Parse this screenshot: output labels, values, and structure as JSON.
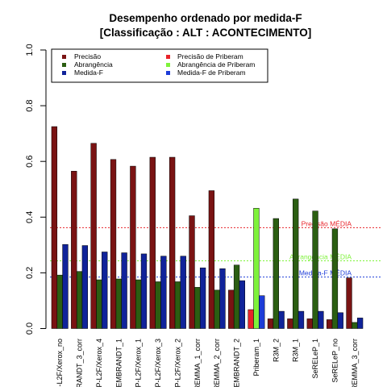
{
  "chart_data": {
    "type": "bar",
    "title": "Desempenho ordenado por medida-F",
    "subtitle": "[Classificação : ALT : ACONTECIMENTO]",
    "xlabel": "",
    "ylabel": "",
    "ylim": [
      0,
      1
    ],
    "yticks": [
      "0.0",
      "0.2",
      "0.4",
      "0.6",
      "0.8",
      "1.0"
    ],
    "grid": false,
    "legend_position": "top",
    "categories": [
      "P-L2F/Xerox_no",
      "EMBRANDT_3_corr",
      "P-L2F/Xerox_4",
      "EMBRANDT_1",
      "P-L2F/Xerox_1",
      "P-L2F/Xerox_3",
      "P-L2F/Xerox_2",
      "REMMA_1_corr",
      "REMMA_2_corr",
      "EMBRANDT_2",
      "Priberam_1",
      "R3M_2",
      "R3M_1",
      "SeRELeP_1",
      "SeRELeP_no",
      "REMMA_3_corr"
    ],
    "series": [
      {
        "name": "Precisão",
        "color": "#7a1313",
        "values": [
          0.725,
          0.565,
          0.665,
          0.607,
          0.583,
          0.615,
          0.615,
          0.405,
          0.495,
          0.138,
          0.068,
          0.035,
          0.035,
          0.035,
          0.032,
          0.182
        ]
      },
      {
        "name": "Abrangência",
        "color": "#2b5e12",
        "values": [
          0.192,
          0.205,
          0.175,
          0.178,
          0.175,
          0.168,
          0.168,
          0.148,
          0.138,
          0.228,
          0.432,
          0.395,
          0.465,
          0.422,
          0.358,
          0.022
        ]
      },
      {
        "name": "Medida-F",
        "color": "#10239a",
        "values": [
          0.302,
          0.298,
          0.275,
          0.272,
          0.268,
          0.26,
          0.26,
          0.218,
          0.215,
          0.172,
          0.118,
          0.062,
          0.062,
          0.062,
          0.057,
          0.038
        ]
      }
    ],
    "highlight": {
      "category": "Priberam_1",
      "colors": {
        "Precisão": "#e8232a",
        "Abrangência": "#7ef23a",
        "Medida-F": "#1d3cd8"
      }
    },
    "legend": {
      "left": [
        {
          "label": "Precisão",
          "color": "#7a1313"
        },
        {
          "label": "Abrangência",
          "color": "#2b5e12"
        },
        {
          "label": "Medida-F",
          "color": "#10239a"
        }
      ],
      "right": [
        {
          "label": "Precisão  de  Priberam",
          "color": "#e8232a"
        },
        {
          "label": "Abrangência  de  Priberam",
          "color": "#7ef23a"
        },
        {
          "label": "Medida-F  de  Priberam",
          "color": "#1d3cd8"
        }
      ]
    },
    "reference_lines": [
      {
        "label": "Precisão MÉDIA",
        "value": 0.362,
        "color": "#e8232a"
      },
      {
        "label": "Abrangência MÉDIA",
        "value": 0.243,
        "color": "#7ef23a"
      },
      {
        "label": "Medida-F MÉDIA",
        "value": 0.185,
        "color": "#1d3cd8"
      }
    ]
  }
}
